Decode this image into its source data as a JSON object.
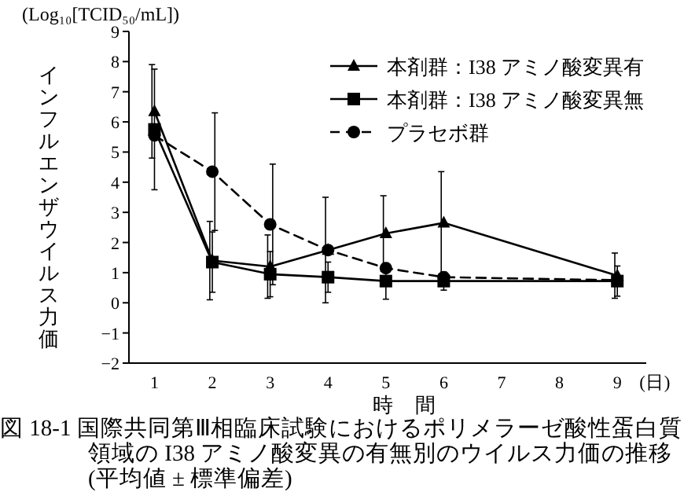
{
  "chart_data": {
    "type": "line",
    "title": "図 18-1 国際共同第Ⅲ相臨床試験におけるポリメラーゼ酸性蛋白質領域の I38 アミノ酸変異の有無別のウイルス力価の推移 (平均値 ± 標準偏差)",
    "xlabel": "時間",
    "ylabel": "インフルエンザウイルス力価",
    "annotations": [
      "(Log₁₀[TCID₅₀/mL])",
      "(日)"
    ],
    "x": [
      1,
      2,
      3,
      4,
      5,
      6,
      9
    ],
    "xlim": [
      0.45,
      9.5
    ],
    "xticks": [
      1,
      2,
      3,
      4,
      5,
      6,
      7,
      8,
      9
    ],
    "ylim": [
      -2,
      9
    ],
    "yticks": [
      -2,
      -1,
      0,
      1,
      2,
      3,
      4,
      5,
      6,
      7,
      8,
      9
    ],
    "grid": false,
    "legend": "top right",
    "series": [
      {
        "name": "本剤群：I38 アミノ酸変異有",
        "color": "#000000",
        "marker": "triangle",
        "line_style": "solid",
        "values": [
          6.35,
          1.4,
          1.2,
          1.75,
          2.3,
          2.65,
          0.9
        ],
        "errors": [
          1.55,
          1.3,
          1.05,
          1.75,
          1.25,
          1.7,
          0.75
        ]
      },
      {
        "name": "本剤群：I38 アミノ酸変異無",
        "color": "#000000",
        "marker": "square",
        "line_style": "solid",
        "values": [
          5.75,
          1.35,
          0.95,
          0.85,
          0.72,
          0.72,
          0.72
        ],
        "errors": [
          2.0,
          1.0,
          0.75,
          0.5,
          0.6,
          0.3,
          0.5
        ]
      },
      {
        "name": "プラセボ群",
        "color": "#000000",
        "marker": "circle",
        "line_style": "dashed",
        "values": [
          5.55,
          4.35,
          2.6,
          1.75,
          1.15,
          0.85,
          0.75
        ],
        "errors": [
          null,
          1.95,
          2.0,
          null,
          null,
          null,
          null
        ]
      }
    ]
  }
}
